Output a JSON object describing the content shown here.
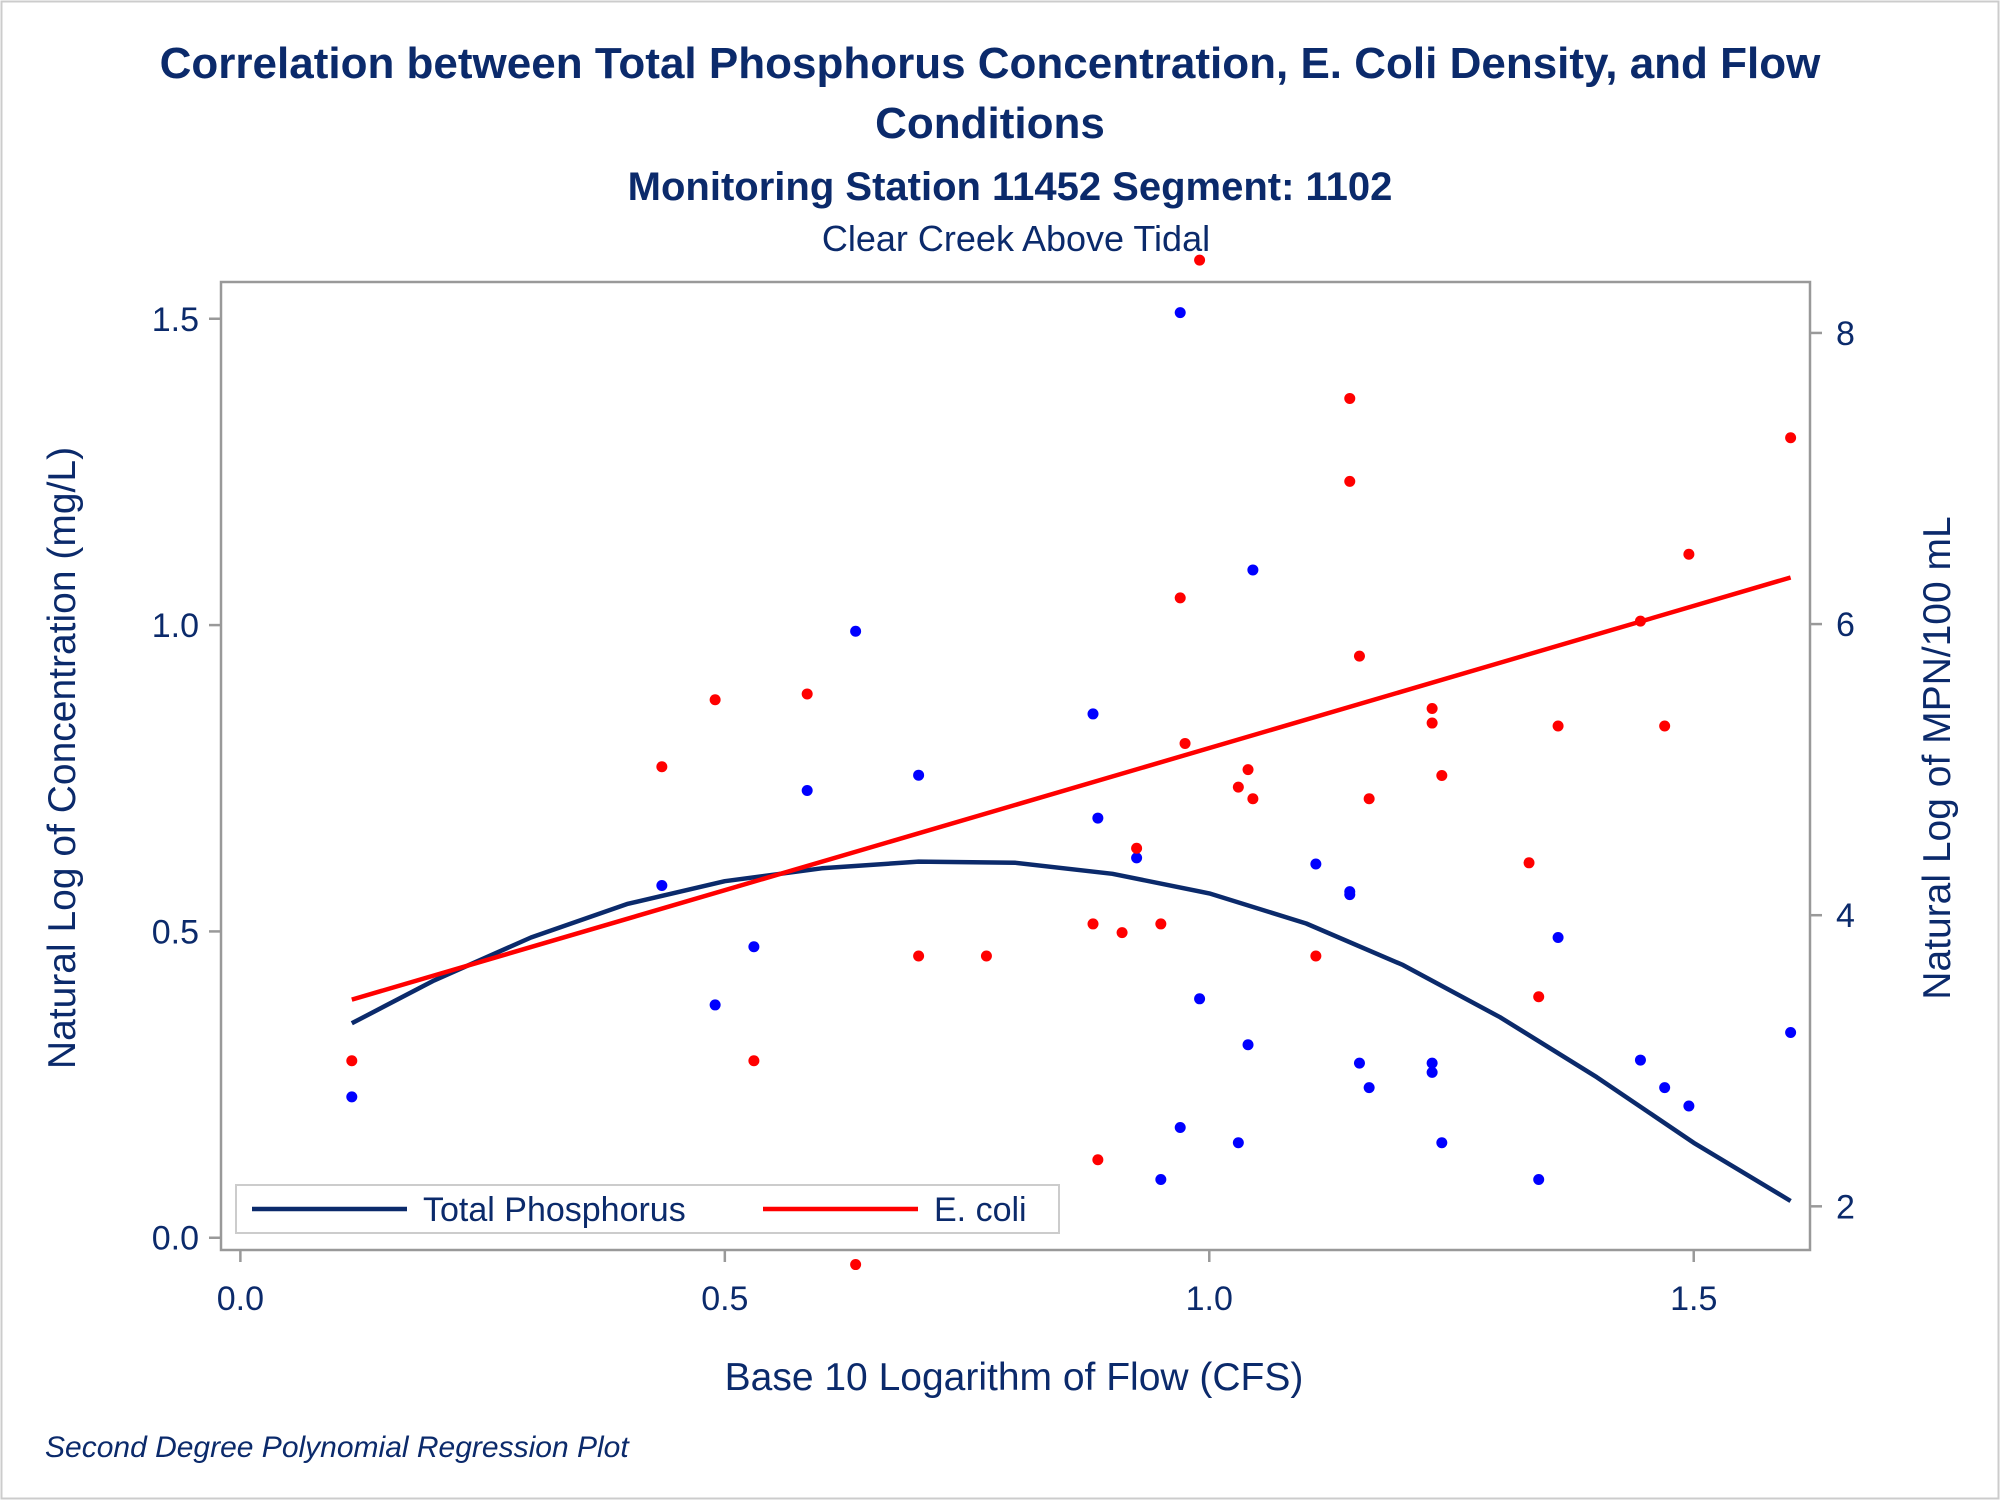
{
  "chart_data": {
    "type": "scatter",
    "title": "Correlation between Total Phosphorus Concentration, E. Coli Density, and Flow",
    "title_line2": "Conditions",
    "subtitle": "Monitoring Station 11452 Segment: 1102",
    "subtitle2": "Clear Creek Above Tidal",
    "xlabel": "Base 10 Logarithm of Flow (CFS)",
    "ylabel": "Natural Log of Concentration (mg/L)",
    "y2label": "Natural Log of MPN/100 mL",
    "footnote": "Second Degree Polynomial Regression Plot",
    "xlim": [
      -0.02,
      1.62
    ],
    "ylim": [
      -0.02,
      1.56
    ],
    "y2lim": [
      1.7,
      8.35
    ],
    "x_ticks": [
      {
        "value": 0.0,
        "label": "0.0"
      },
      {
        "value": 0.5,
        "label": "0.5"
      },
      {
        "value": 1.0,
        "label": "1.0"
      },
      {
        "value": 1.5,
        "label": "1.5"
      }
    ],
    "y_ticks": [
      {
        "value": 0.0,
        "label": "0.0"
      },
      {
        "value": 0.5,
        "label": "0.5"
      },
      {
        "value": 1.0,
        "label": "1.0"
      },
      {
        "value": 1.5,
        "label": "1.5"
      }
    ],
    "y2_ticks": [
      {
        "value": 2,
        "label": "2"
      },
      {
        "value": 4,
        "label": "4"
      },
      {
        "value": 6,
        "label": "6"
      },
      {
        "value": 8,
        "label": "8"
      }
    ],
    "grid": false,
    "legend_placement": "bottom-left-inside",
    "colors": {
      "phosphorus": "#0b2a6b",
      "ecoli": "#ff0000",
      "phosphorus_points": "#0000ff",
      "ecoli_points": "#ff0000",
      "text": "#0b2a6b",
      "frame": "#999999"
    },
    "series": [
      {
        "name": "Total Phosphorus",
        "kind": "fit-line",
        "axis": "y",
        "x": [
          0.115,
          0.2,
          0.3,
          0.4,
          0.5,
          0.6,
          0.7,
          0.8,
          0.9,
          1.0,
          1.1,
          1.2,
          1.3,
          1.4,
          1.5,
          1.6
        ],
        "y": [
          0.35,
          0.42,
          0.49,
          0.545,
          0.582,
          0.603,
          0.614,
          0.612,
          0.594,
          0.562,
          0.513,
          0.445,
          0.36,
          0.262,
          0.155,
          0.06
        ]
      },
      {
        "name": "E. coli",
        "kind": "fit-line",
        "axis": "y2",
        "x": [
          0.115,
          1.6
        ],
        "y": [
          3.42,
          6.32
        ]
      },
      {
        "name": "Total Phosphorus observations",
        "kind": "points",
        "axis": "y",
        "x": [
          0.115,
          0.435,
          0.49,
          0.53,
          0.585,
          0.635,
          0.7,
          0.88,
          0.885,
          0.925,
          0.95,
          0.97,
          0.97,
          0.99,
          1.03,
          1.04,
          1.045,
          1.11,
          1.145,
          1.145,
          1.155,
          1.165,
          1.23,
          1.23,
          1.24,
          1.34,
          1.36,
          1.445,
          1.47,
          1.495,
          1.6
        ],
        "y": [
          0.23,
          0.575,
          0.38,
          0.475,
          0.73,
          0.99,
          0.755,
          0.855,
          0.685,
          0.62,
          0.095,
          0.18,
          1.51,
          0.39,
          0.155,
          0.315,
          1.09,
          0.61,
          0.565,
          0.56,
          0.285,
          0.245,
          0.285,
          0.27,
          0.155,
          0.095,
          0.49,
          0.29,
          0.245,
          0.215,
          0.335
        ]
      },
      {
        "name": "E. coli observations",
        "kind": "points",
        "axis": "y2",
        "x": [
          0.115,
          0.435,
          0.49,
          0.53,
          0.585,
          0.635,
          0.7,
          0.77,
          0.88,
          0.885,
          0.91,
          0.925,
          0.95,
          0.97,
          0.975,
          0.99,
          1.03,
          1.04,
          1.045,
          1.11,
          1.145,
          1.145,
          1.155,
          1.165,
          1.23,
          1.23,
          1.24,
          1.33,
          1.34,
          1.36,
          1.445,
          1.47,
          1.495,
          1.6
        ],
        "y": [
          3.0,
          5.02,
          5.48,
          3.0,
          5.52,
          1.6,
          3.72,
          3.72,
          3.94,
          2.32,
          3.88,
          4.46,
          3.94,
          6.18,
          5.18,
          8.5,
          4.88,
          5.0,
          4.8,
          3.72,
          7.55,
          6.98,
          5.78,
          4.8,
          5.42,
          5.32,
          4.96,
          4.36,
          3.44,
          5.3,
          6.02,
          5.3,
          6.48,
          7.28
        ]
      }
    ]
  }
}
